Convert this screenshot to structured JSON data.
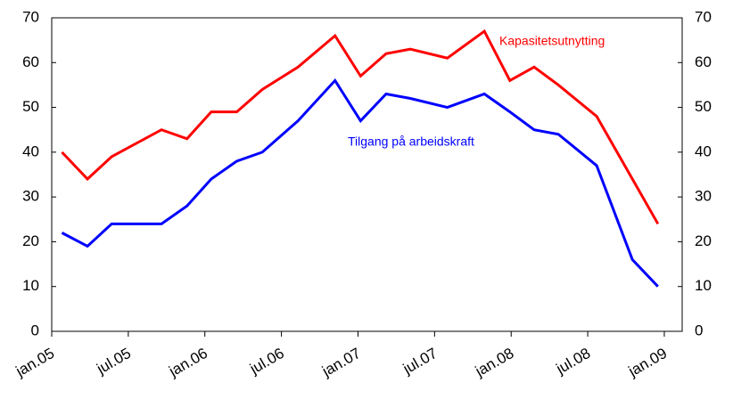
{
  "chart_data": {
    "type": "line",
    "x": [
      0.8,
      2.8,
      4.7,
      8.6,
      10.6,
      12.5,
      14.5,
      16.5,
      19.3,
      22.2,
      24.2,
      26.2,
      28.1,
      31,
      33.9,
      35.9,
      37.8,
      39.7,
      42.7,
      45.5,
      47.5
    ],
    "series": [
      {
        "name": "Kapasitetsutnytting",
        "color": "#ff0000",
        "values": [
          40,
          34,
          39,
          45,
          43,
          49,
          49,
          54,
          59,
          66,
          57,
          62,
          63,
          61,
          67,
          56,
          59,
          55,
          48,
          34,
          24
        ]
      },
      {
        "name": "Tilgang på arbeidskraft",
        "color": "#0000ff",
        "values": [
          22,
          19,
          24,
          24,
          28,
          34,
          38,
          40,
          47,
          56,
          47,
          53,
          52,
          50,
          53,
          49,
          45,
          44,
          37,
          16,
          10
        ]
      }
    ],
    "xlim": [
      0,
      49.4
    ],
    "xticks": [
      {
        "value": 0,
        "label": "jan.05"
      },
      {
        "value": 6,
        "label": "jul.05"
      },
      {
        "value": 12,
        "label": "jan.06"
      },
      {
        "value": 18,
        "label": "jul.06"
      },
      {
        "value": 24,
        "label": "jan.07"
      },
      {
        "value": 30,
        "label": "jul.07"
      },
      {
        "value": 36,
        "label": "jan.08"
      },
      {
        "value": 42,
        "label": "jul.08"
      },
      {
        "value": 48,
        "label": "jan.09"
      }
    ],
    "ylim": [
      0,
      70
    ],
    "yticks": [
      0,
      10,
      20,
      30,
      40,
      50,
      60,
      70
    ],
    "y2lim": [
      0,
      70
    ],
    "y2ticks": [
      0,
      10,
      20,
      30,
      40,
      50,
      60,
      70
    ]
  }
}
